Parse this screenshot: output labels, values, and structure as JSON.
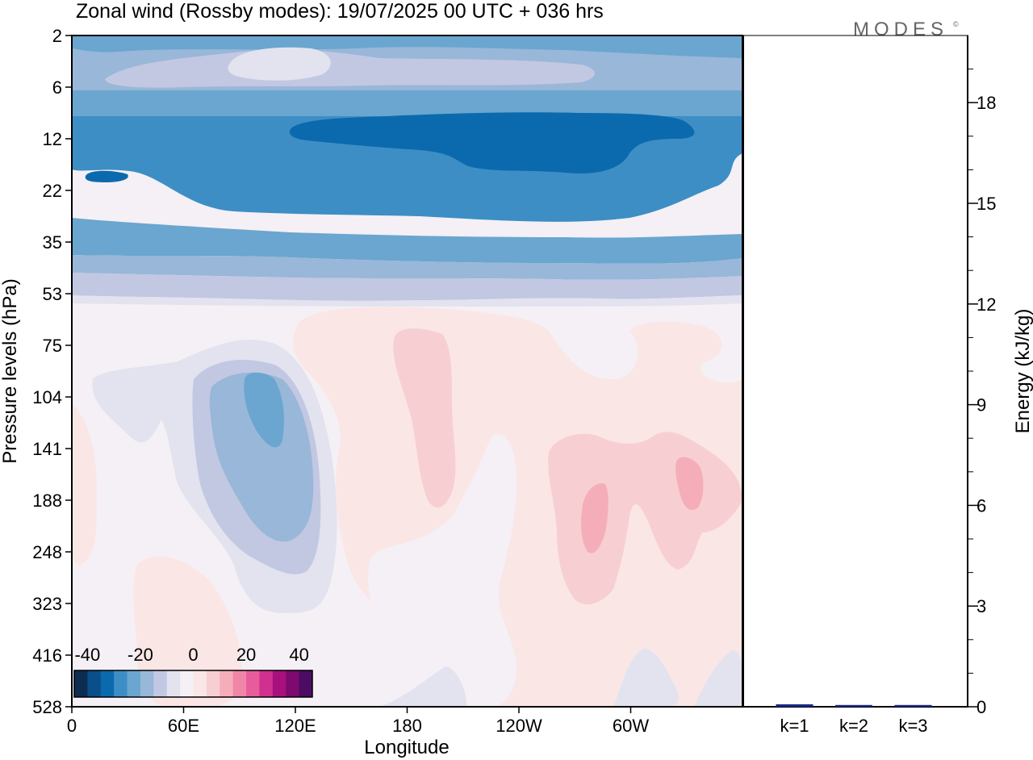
{
  "title": "Zonal wind (Rossby modes):  19/07/2025  00 UTC  + 036 hrs",
  "logo": "MODES",
  "logo_mark": "©",
  "chart_data": [
    {
      "type": "heatmap",
      "title": "Zonal wind (Rossby modes):  19/07/2025  00 UTC  + 036 hrs",
      "xlabel": "Longitude",
      "ylabel": "Pressure levels (hPa)",
      "x_ticks": [
        "0",
        "60E",
        "120E",
        "180",
        "120W",
        "60W"
      ],
      "x_tick_degrees": [
        0,
        60,
        120,
        180,
        240,
        300
      ],
      "x_range_degrees": [
        0,
        360
      ],
      "y_ticks": [
        "2",
        "6",
        "12",
        "22",
        "35",
        "53",
        "75",
        "104",
        "141",
        "188",
        "248",
        "323",
        "416",
        "528"
      ],
      "colorbar": {
        "tick_labels": [
          "-40",
          "-20",
          "0",
          "20",
          "40"
        ],
        "levels": [
          -45,
          -40,
          -35,
          -30,
          -25,
          -20,
          -15,
          -10,
          -5,
          0,
          5,
          10,
          15,
          20,
          25,
          30,
          35,
          40,
          45
        ],
        "colors": [
          "#0d2c52",
          "#0a4f8a",
          "#0b6aad",
          "#3d8ec5",
          "#6aa6cf",
          "#99b7d8",
          "#c2c8e2",
          "#e2e3ef",
          "#f4f0f5",
          "#fbe6e6",
          "#f7cfd2",
          "#f5aeb9",
          "#ef86a8",
          "#e75d9b",
          "#d0308f",
          "#a8107e",
          "#7d0a6e",
          "#4c0c63"
        ]
      },
      "bands": [
        {
          "p_top": "2",
          "p_bottom": "6",
          "value": -25,
          "note": "weak easterlies aloft with a -15 patch near 60E-120E"
        },
        {
          "p_top": "6",
          "p_bottom": "12",
          "value": -30
        },
        {
          "p_top": "12",
          "p_bottom": "22",
          "value": -40,
          "note": "strongest easterly core between 120E and 60W"
        },
        {
          "p_top": "22",
          "p_bottom": "35",
          "value": -35
        },
        {
          "p_top": "35",
          "p_bottom": "53",
          "value": -20
        },
        {
          "p_top": "53",
          "p_bottom": "528",
          "value": 0
        }
      ],
      "features": [
        {
          "name": "easterly anomaly",
          "lon_center": "105E",
          "pressure_center": "120",
          "min_value": -30
        },
        {
          "name": "westerly anomaly",
          "lon_center": "170W",
          "pressure_center": "120",
          "max_value": 10
        },
        {
          "name": "westerly anomaly",
          "lon_center": "95W",
          "pressure_center": "188",
          "max_value": 15
        },
        {
          "name": "westerly anomaly",
          "lon_center": "30W",
          "pressure_center": "160",
          "max_value": 15
        }
      ]
    },
    {
      "type": "bar",
      "ylabel": "Energy (kJ/kg)",
      "categories": [
        "k=1",
        "k=2",
        "k=3"
      ],
      "values": [
        0.05,
        0.02,
        0.01
      ],
      "ylim": [
        0,
        20
      ],
      "y_ticks": [
        "0",
        "3",
        "6",
        "9",
        "12",
        "15",
        "18"
      ],
      "bar_color": "#1a2a8c"
    }
  ]
}
